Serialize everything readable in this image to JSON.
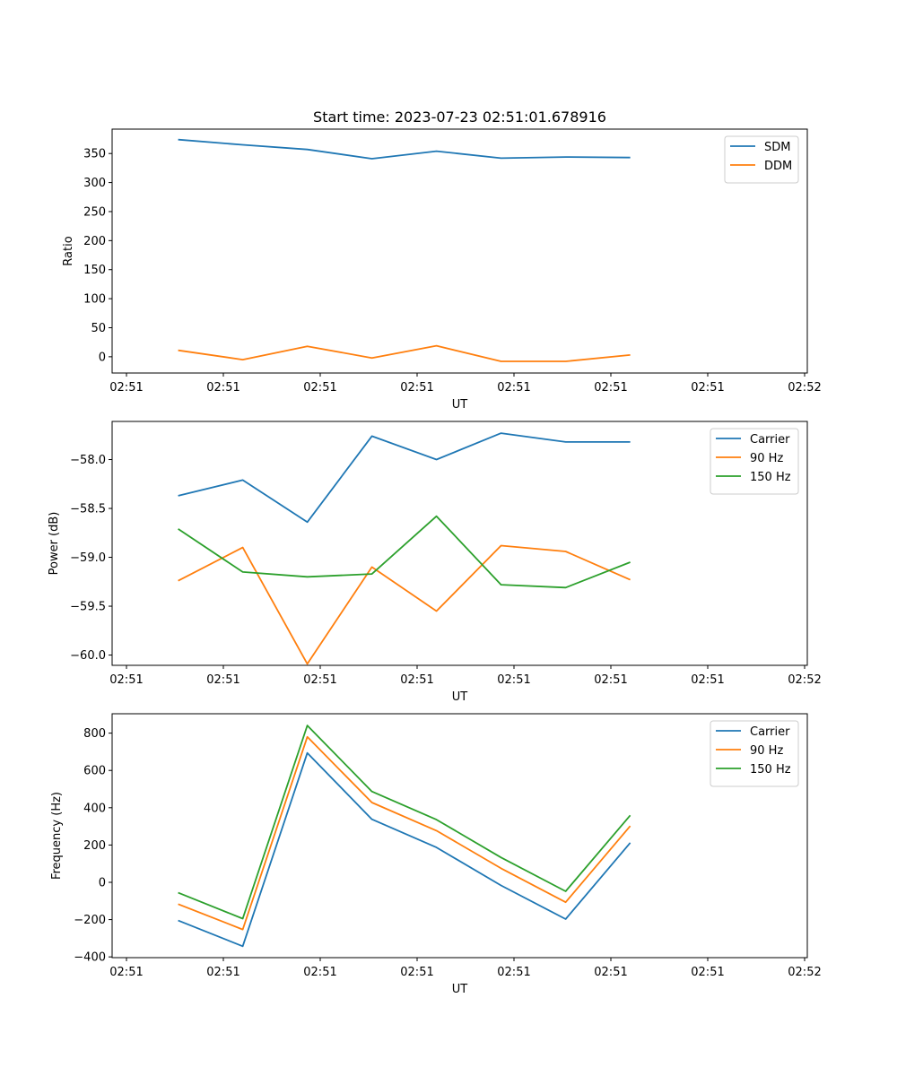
{
  "chart_data": [
    {
      "type": "line",
      "title": "Start time: 2023-07-23 02:51:01.678916",
      "xlabel": "UT",
      "ylabel": "Ratio",
      "x_tick_labels": [
        "02:51",
        "02:51",
        "02:51",
        "02:51",
        "02:51",
        "02:51",
        "02:51"
      ],
      "x_last_tick_label": "02:52",
      "x": [
        1,
        2,
        3,
        4,
        5,
        6,
        7,
        8
      ],
      "xlim": [
        0.2,
        9.2
      ],
      "ylim": [
        -28,
        392
      ],
      "yticks": [
        0,
        50,
        100,
        150,
        200,
        250,
        300,
        350
      ],
      "legend_position": "top-right",
      "series": [
        {
          "name": "SDM",
          "color": "#1f77b4",
          "values": [
            374,
            365,
            357,
            341,
            354,
            342,
            344,
            343
          ]
        },
        {
          "name": "DDM",
          "color": "#ff7f0e",
          "values": [
            11,
            -5,
            18,
            -2,
            19,
            -8,
            -8,
            3
          ]
        }
      ]
    },
    {
      "type": "line",
      "title": "",
      "xlabel": "UT",
      "ylabel": "Power (dB)",
      "x_tick_labels": [
        "02:51",
        "02:51",
        "02:51",
        "02:51",
        "02:51",
        "02:51",
        "02:51"
      ],
      "x_last_tick_label": "02:52",
      "x": [
        1,
        2,
        3,
        4,
        5,
        6,
        7,
        8
      ],
      "xlim": [
        0.2,
        9.2
      ],
      "ylim": [
        -60.105,
        -57.61
      ],
      "yticks": [
        -60.0,
        -59.5,
        -59.0,
        -58.5,
        -58.0
      ],
      "ytick_labels": [
        "−60.0",
        "−59.5",
        "−59.0",
        "−58.5",
        "−58.0"
      ],
      "legend_position": "top-right",
      "series": [
        {
          "name": "Carrier",
          "color": "#1f77b4",
          "values": [
            -58.37,
            -58.21,
            -58.64,
            -57.76,
            -58.0,
            -57.73,
            -57.82,
            -57.82
          ]
        },
        {
          "name": "90 Hz",
          "color": "#ff7f0e",
          "values": [
            -59.24,
            -58.9,
            -60.09,
            -59.1,
            -59.55,
            -58.88,
            -58.94,
            -59.23
          ]
        },
        {
          "name": "150 Hz",
          "color": "#2ca02c",
          "values": [
            -58.71,
            -59.15,
            -59.2,
            -59.17,
            -58.58,
            -59.28,
            -59.31,
            -59.05
          ]
        }
      ]
    },
    {
      "type": "line",
      "title": "",
      "xlabel": "UT",
      "ylabel": "Frequency (Hz)",
      "x_tick_labels": [
        "02:51",
        "02:51",
        "02:51",
        "02:51",
        "02:51",
        "02:51",
        "02:51"
      ],
      "x_last_tick_label": "02:52",
      "x": [
        1,
        2,
        3,
        4,
        5,
        6,
        7,
        8
      ],
      "xlim": [
        0.2,
        9.2
      ],
      "ylim": [
        -404,
        904
      ],
      "yticks": [
        -400,
        -200,
        0,
        200,
        400,
        600,
        800
      ],
      "ytick_labels": [
        "−400",
        "−200",
        "0",
        "200",
        "400",
        "600",
        "800"
      ],
      "legend_position": "top-right",
      "series": [
        {
          "name": "Carrier",
          "color": "#1f77b4",
          "values": [
            -205,
            -343,
            694,
            338,
            187,
            -17,
            -197,
            212
          ]
        },
        {
          "name": "90 Hz",
          "color": "#ff7f0e",
          "values": [
            -117,
            -253,
            780,
            428,
            277,
            75,
            -107,
            302
          ]
        },
        {
          "name": "150 Hz",
          "color": "#2ca02c",
          "values": [
            -56,
            -195,
            841,
            487,
            336,
            133,
            -48,
            359
          ]
        }
      ]
    }
  ]
}
